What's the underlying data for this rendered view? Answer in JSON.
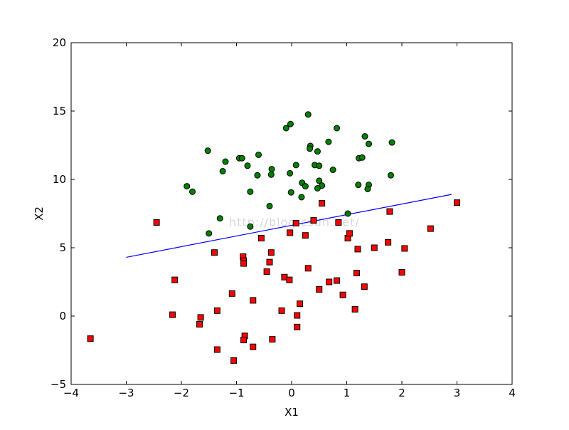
{
  "chart_data": {
    "type": "scatter",
    "xlabel": "X1",
    "ylabel": "X2",
    "xlim": [
      -4,
      4
    ],
    "ylim": [
      -5,
      20
    ],
    "x_ticks": [
      -4,
      -3,
      -2,
      -1,
      0,
      1,
      2,
      3,
      4
    ],
    "y_ticks": [
      -5,
      0,
      5,
      10,
      15,
      20
    ],
    "x_tick_labels": [
      "−4",
      "−3",
      "−2",
      "−1",
      "0",
      "1",
      "2",
      "3",
      "4"
    ],
    "y_tick_labels": [
      "−5",
      "0",
      "5",
      "10",
      "15",
      "20"
    ],
    "grid": false,
    "watermark": "http://blog.csdn.net/",
    "series": [
      {
        "marker": "circle",
        "color": "#008000",
        "points": [
          [
            -1.52,
            12.1
          ],
          [
            -1.25,
            10.6
          ],
          [
            -1.2,
            11.3
          ],
          [
            -1.9,
            9.5
          ],
          [
            -1.8,
            9.1
          ],
          [
            -0.95,
            11.55
          ],
          [
            -0.9,
            11.55
          ],
          [
            -0.8,
            11.0
          ],
          [
            -0.6,
            11.8
          ],
          [
            -0.62,
            10.3
          ],
          [
            -0.36,
            10.75
          ],
          [
            -0.37,
            10.35
          ],
          [
            -0.75,
            9.1
          ],
          [
            -0.4,
            8.05
          ],
          [
            -0.75,
            6.55
          ],
          [
            -1.3,
            7.15
          ],
          [
            -1.5,
            6.05
          ],
          [
            -0.1,
            13.75
          ],
          [
            -0.02,
            14.05
          ],
          [
            0.3,
            14.75
          ],
          [
            0.34,
            12.45
          ],
          [
            0.33,
            12.25
          ],
          [
            0.47,
            12.05
          ],
          [
            0.08,
            11.05
          ],
          [
            0.42,
            11.05
          ],
          [
            0.5,
            11.0
          ],
          [
            -0.03,
            10.45
          ],
          [
            0.67,
            12.75
          ],
          [
            0.82,
            13.75
          ],
          [
            1.33,
            13.15
          ],
          [
            1.4,
            12.6
          ],
          [
            1.22,
            11.55
          ],
          [
            1.28,
            11.6
          ],
          [
            0.75,
            10.7
          ],
          [
            1.82,
            12.7
          ],
          [
            0.19,
            9.75
          ],
          [
            0.25,
            9.5
          ],
          [
            0.5,
            9.9
          ],
          [
            0.55,
            9.55
          ],
          [
            0.47,
            9.35
          ],
          [
            -0.01,
            9.05
          ],
          [
            0.18,
            8.7
          ],
          [
            1.21,
            9.6
          ],
          [
            1.4,
            9.6
          ],
          [
            1.38,
            9.3
          ],
          [
            1.8,
            10.3
          ],
          [
            1.02,
            7.5
          ]
        ]
      },
      {
        "marker": "square",
        "color": "#ff0000",
        "points": [
          [
            -3.65,
            -1.65
          ],
          [
            -2.45,
            6.85
          ],
          [
            -2.12,
            2.65
          ],
          [
            -2.16,
            0.1
          ],
          [
            -1.65,
            -0.1
          ],
          [
            -1.67,
            -0.6
          ],
          [
            -1.4,
            4.65
          ],
          [
            -1.35,
            0.4
          ],
          [
            -1.35,
            -2.45
          ],
          [
            -1.08,
            1.65
          ],
          [
            -1.05,
            -3.25
          ],
          [
            -0.88,
            4.35
          ],
          [
            -0.87,
            4.05
          ],
          [
            -0.87,
            3.85
          ],
          [
            -0.85,
            -1.45
          ],
          [
            -0.87,
            -1.75
          ],
          [
            -0.7,
            1.15
          ],
          [
            -0.7,
            -2.25
          ],
          [
            -0.55,
            5.7
          ],
          [
            -0.45,
            3.25
          ],
          [
            -0.37,
            4.65
          ],
          [
            -0.4,
            3.95
          ],
          [
            -0.35,
            -1.7
          ],
          [
            -0.18,
            0.4
          ],
          [
            -0.13,
            2.85
          ],
          [
            -0.04,
            2.65
          ],
          [
            -0.03,
            6.1
          ],
          [
            0.08,
            6.8
          ],
          [
            0.1,
            0.05
          ],
          [
            0.1,
            -0.8
          ],
          [
            0.15,
            0.9
          ],
          [
            0.25,
            5.9
          ],
          [
            0.3,
            3.5
          ],
          [
            0.4,
            7.0
          ],
          [
            0.5,
            1.95
          ],
          [
            0.55,
            8.25
          ],
          [
            0.68,
            2.5
          ],
          [
            0.82,
            2.6
          ],
          [
            0.85,
            6.85
          ],
          [
            0.93,
            1.55
          ],
          [
            1.02,
            5.7
          ],
          [
            1.05,
            6.05
          ],
          [
            1.15,
            0.5
          ],
          [
            1.18,
            3.15
          ],
          [
            1.2,
            4.9
          ],
          [
            1.32,
            2.15
          ],
          [
            1.5,
            5.0
          ],
          [
            1.75,
            5.4
          ],
          [
            1.78,
            7.65
          ],
          [
            2.0,
            3.2
          ],
          [
            2.05,
            4.95
          ],
          [
            2.52,
            6.4
          ],
          [
            3.0,
            8.3
          ]
        ]
      }
    ],
    "line": {
      "color": "#0000ff",
      "points": [
        [
          -3.0,
          4.3
        ],
        [
          2.9,
          8.9
        ]
      ]
    }
  }
}
